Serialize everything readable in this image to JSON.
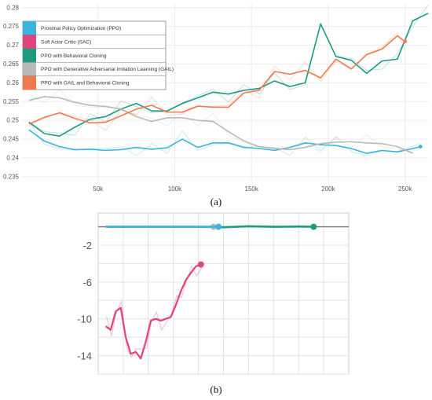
{
  "colors": {
    "ppo": "#3bb4dd",
    "sac": "#e0447d",
    "bc": "#1b9b80",
    "gail": "#b9b9b9",
    "gail_bc": "#f07a4c"
  },
  "chart_data": [
    {
      "type": "line",
      "panel_label": "(a)",
      "xlim": [
        0,
        265000
      ],
      "ylim": [
        0.2335,
        0.281
      ],
      "x_ticks": [
        50000,
        100000,
        150000,
        200000,
        250000
      ],
      "x_tick_labels": [
        "50k",
        "100k",
        "150k",
        "200k",
        "250k"
      ],
      "y_ticks": [
        0.235,
        0.24,
        0.245,
        0.25,
        0.255,
        0.26,
        0.265,
        0.27,
        0.275,
        0.28
      ],
      "y_tick_labels": [
        "0.235",
        "0.24",
        "0.245",
        "0.25",
        "0.255",
        "0.26",
        "0.265",
        "0.27",
        "0.275",
        "0.28"
      ],
      "grid": true,
      "legend_position": "top-left",
      "legend": [
        {
          "key": "ppo",
          "label": "Proximal Policy Optimization (PPO)"
        },
        {
          "key": "sac",
          "label": "Soft Actor Critic (SAC)"
        },
        {
          "key": "bc",
          "label": "PPO with Behavioral Cloning"
        },
        {
          "key": "gail",
          "label": "PPO with Generative Adversarial Imitation Learning (GAIL)"
        },
        {
          "key": "gail_bc",
          "label": "PPO with GAIL and Behavioral Cloning"
        }
      ],
      "series": [
        {
          "key": "ppo",
          "name": "Proximal Policy Optimization (PPO)",
          "end_marker": true,
          "x": [
            5000,
            15000,
            25000,
            35000,
            45000,
            55000,
            65000,
            75000,
            85000,
            95000,
            105000,
            115000,
            125000,
            135000,
            145000,
            155000,
            165000,
            175000,
            185000,
            195000,
            205000,
            215000,
            225000,
            235000,
            245000,
            255000,
            260000
          ],
          "y": [
            0.2475,
            0.2445,
            0.243,
            0.2422,
            0.2423,
            0.242,
            0.2422,
            0.2428,
            0.2423,
            0.2427,
            0.245,
            0.2428,
            0.244,
            0.244,
            0.2428,
            0.2425,
            0.242,
            0.2428,
            0.244,
            0.2435,
            0.2433,
            0.2425,
            0.2412,
            0.242,
            0.2416,
            0.2425,
            0.243
          ]
        },
        {
          "key": "bc",
          "name": "PPO with Behavioral Cloning",
          "end_marker": false,
          "x": [
            5000,
            15000,
            25000,
            35000,
            45000,
            55000,
            65000,
            75000,
            85000,
            95000,
            105000,
            115000,
            125000,
            135000,
            145000,
            155000,
            165000,
            175000,
            185000,
            195000,
            205000,
            215000,
            225000,
            235000,
            245000,
            255000,
            265000
          ],
          "y": [
            0.2495,
            0.2465,
            0.2458,
            0.2482,
            0.2503,
            0.251,
            0.253,
            0.2545,
            0.2525,
            0.2525,
            0.2545,
            0.256,
            0.2575,
            0.257,
            0.258,
            0.2585,
            0.2605,
            0.259,
            0.26,
            0.2757,
            0.267,
            0.266,
            0.2625,
            0.2658,
            0.2663,
            0.2765,
            0.2785
          ]
        },
        {
          "key": "gail",
          "name": "PPO with Generative Adversarial Imitation Learning (GAIL)",
          "end_marker": false,
          "x": [
            5000,
            15000,
            25000,
            35000,
            45000,
            55000,
            65000,
            75000,
            85000,
            95000,
            105000,
            115000,
            125000,
            135000,
            145000,
            155000,
            165000,
            175000,
            185000,
            195000,
            205000,
            215000,
            225000,
            235000,
            245000,
            255000
          ],
          "y": [
            0.2553,
            0.2563,
            0.256,
            0.2548,
            0.254,
            0.2537,
            0.253,
            0.251,
            0.2497,
            0.2507,
            0.2507,
            0.25,
            0.2497,
            0.247,
            0.2445,
            0.243,
            0.2425,
            0.2422,
            0.2428,
            0.2438,
            0.2442,
            0.2443,
            0.244,
            0.2438,
            0.243,
            0.2413
          ]
        },
        {
          "key": "gail_bc",
          "name": "PPO with GAIL and Behavioral Cloning",
          "end_marker": true,
          "x": [
            5000,
            15000,
            25000,
            35000,
            45000,
            55000,
            65000,
            75000,
            85000,
            95000,
            105000,
            115000,
            125000,
            135000,
            145000,
            155000,
            165000,
            175000,
            185000,
            195000,
            205000,
            215000,
            225000,
            235000,
            245000,
            250000
          ],
          "y": [
            0.249,
            0.2508,
            0.252,
            0.2505,
            0.2493,
            0.2495,
            0.2512,
            0.253,
            0.254,
            0.2522,
            0.2522,
            0.2538,
            0.2535,
            0.2535,
            0.2573,
            0.258,
            0.263,
            0.2623,
            0.2633,
            0.2613,
            0.2663,
            0.2637,
            0.2675,
            0.269,
            0.2725,
            0.271
          ]
        }
      ]
    },
    {
      "type": "line",
      "panel_label": "(b)",
      "xlim": [
        0,
        100
      ],
      "ylim": [
        -16,
        1.5
      ],
      "y_ticks": [
        -2,
        -6,
        -10,
        -14
      ],
      "y_tick_labels": [
        "-2",
        "-6",
        "-10",
        "-14"
      ],
      "grid": true,
      "series": [
        {
          "key": "bc",
          "end_marker": true,
          "x": [
            3,
            10,
            20,
            30,
            40,
            50,
            60,
            70,
            80,
            86
          ],
          "y": [
            0,
            0,
            0,
            0,
            0,
            -0.05,
            0.05,
            0,
            0.02,
            0
          ]
        },
        {
          "key": "gail",
          "end_marker": true,
          "x": [
            3,
            10,
            20,
            30,
            40,
            46
          ],
          "y": [
            0,
            0,
            0,
            0,
            0,
            0
          ]
        },
        {
          "key": "ppo",
          "end_marker": true,
          "x": [
            3,
            10,
            20,
            30,
            40,
            48
          ],
          "y": [
            0,
            0,
            0,
            0,
            0,
            0
          ]
        },
        {
          "key": "sac",
          "end_marker": true,
          "x": [
            3,
            5,
            7,
            9,
            11,
            13,
            15,
            17,
            19,
            21,
            23,
            25,
            27,
            29,
            31,
            33,
            35,
            37,
            39,
            41
          ],
          "y": [
            -10.8,
            -11.2,
            -9.2,
            -8.8,
            -12.0,
            -13.8,
            -13.6,
            -14.3,
            -12.5,
            -10.2,
            -10.0,
            -10.2,
            -10.0,
            -9.8,
            -8.5,
            -7.0,
            -5.8,
            -5.0,
            -4.3,
            -4.1
          ]
        }
      ]
    }
  ]
}
